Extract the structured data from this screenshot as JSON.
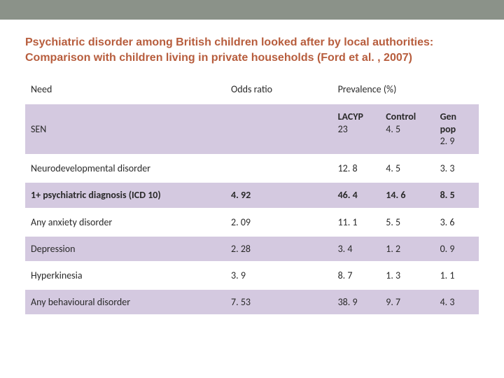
{
  "title": "Psychiatric disorder among British children looked after by local authorities: Comparison with children living in private households (Ford et al. , 2007)",
  "table": {
    "columns": {
      "need": "Need",
      "odds": "Odds ratio",
      "prevalence": "Prevalence (%)"
    },
    "groups": {
      "lacyp": "LACYP",
      "control": "Control",
      "genpop": "Gen pop"
    },
    "colors": {
      "lilac": "#d4c9e0",
      "white": "#ffffff",
      "title_color": "#b75d3d",
      "topbar": "#8b9289",
      "text": "#2a2a2a"
    },
    "rows": [
      {
        "need": "SEN",
        "odds": "",
        "lacyp": "23",
        "control": "4. 5",
        "genpop": "2. 9",
        "bold": false,
        "shade": "lilac",
        "header_prefix": true
      },
      {
        "need": "Neurodevelopmental disorder",
        "odds": "",
        "lacyp": "12. 8",
        "control": "4. 5",
        "genpop": "3. 3",
        "bold": false,
        "shade": "white"
      },
      {
        "need": "1+ psychiatric diagnosis (ICD 10)",
        "odds": "4. 92",
        "lacyp": "46. 4",
        "control": "14. 6",
        "genpop": "8. 5",
        "bold": true,
        "shade": "lilac"
      },
      {
        "need": "Any anxiety disorder",
        "odds": "2. 09",
        "lacyp": "11. 1",
        "control": "5. 5",
        "genpop": "3. 6",
        "bold": false,
        "shade": "white"
      },
      {
        "need": "Depression",
        "odds": "2. 28",
        "lacyp": "3. 4",
        "control": "1. 2",
        "genpop": "0. 9",
        "bold": false,
        "shade": "lilac"
      },
      {
        "need": "Hyperkinesia",
        "odds": "3. 9",
        "lacyp": "8. 7",
        "control": "1. 3",
        "genpop": "1. 1",
        "bold": false,
        "shade": "white"
      },
      {
        "need": "Any behavioural disorder",
        "odds": "7. 53",
        "lacyp": "38. 9",
        "control": "9. 7",
        "genpop": "4. 3",
        "bold": false,
        "shade": "lilac"
      }
    ]
  }
}
